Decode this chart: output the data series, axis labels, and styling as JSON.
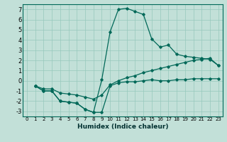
{
  "xlabel": "Humidex (Indice chaleur)",
  "ylabel": "",
  "background_color": "#c2e0d8",
  "grid_color": "#96c8bc",
  "line_color": "#006858",
  "xlim": [
    -0.5,
    23.5
  ],
  "ylim": [
    -3.5,
    7.5
  ],
  "xticks": [
    0,
    1,
    2,
    3,
    4,
    5,
    6,
    7,
    8,
    9,
    10,
    11,
    12,
    13,
    14,
    15,
    16,
    17,
    18,
    19,
    20,
    21,
    22,
    23
  ],
  "yticks": [
    -3,
    -2,
    -1,
    0,
    1,
    2,
    3,
    4,
    5,
    6,
    7
  ],
  "curve_upper_x": [
    1,
    2,
    3,
    4,
    5,
    6,
    7,
    8,
    9,
    10,
    11,
    12,
    13,
    14,
    15,
    16,
    17,
    18,
    19,
    20,
    21,
    22,
    23
  ],
  "curve_upper_y": [
    -0.5,
    -1.0,
    -1.0,
    -2.0,
    -2.1,
    -2.2,
    -2.8,
    -3.1,
    0.1,
    4.8,
    7.0,
    7.1,
    6.8,
    6.5,
    4.1,
    3.3,
    3.5,
    2.6,
    2.4,
    2.3,
    2.2,
    2.1,
    1.5
  ],
  "curve_lower_x": [
    1,
    2,
    3,
    4,
    5,
    6,
    7,
    8,
    9,
    10,
    11,
    12,
    13,
    14,
    15,
    16,
    17,
    18,
    19,
    20,
    21,
    22,
    23
  ],
  "curve_lower_y": [
    -0.5,
    -1.0,
    -1.0,
    -2.0,
    -2.1,
    -2.2,
    -2.8,
    -3.1,
    -3.1,
    -0.5,
    -0.2,
    -0.1,
    -0.1,
    0.0,
    0.1,
    0.0,
    0.0,
    0.1,
    0.1,
    0.2,
    0.2,
    0.2,
    0.2
  ],
  "curve_mid_x": [
    1,
    2,
    3,
    4,
    5,
    6,
    7,
    8,
    9,
    10,
    11,
    12,
    13,
    14,
    15,
    16,
    17,
    18,
    19,
    20,
    21,
    22,
    23
  ],
  "curve_mid_y": [
    -0.5,
    -0.8,
    -0.8,
    -1.2,
    -1.3,
    -1.4,
    -1.6,
    -1.8,
    -1.4,
    -0.4,
    0.0,
    0.3,
    0.5,
    0.8,
    1.0,
    1.2,
    1.4,
    1.6,
    1.8,
    2.0,
    2.1,
    2.2,
    1.5
  ]
}
